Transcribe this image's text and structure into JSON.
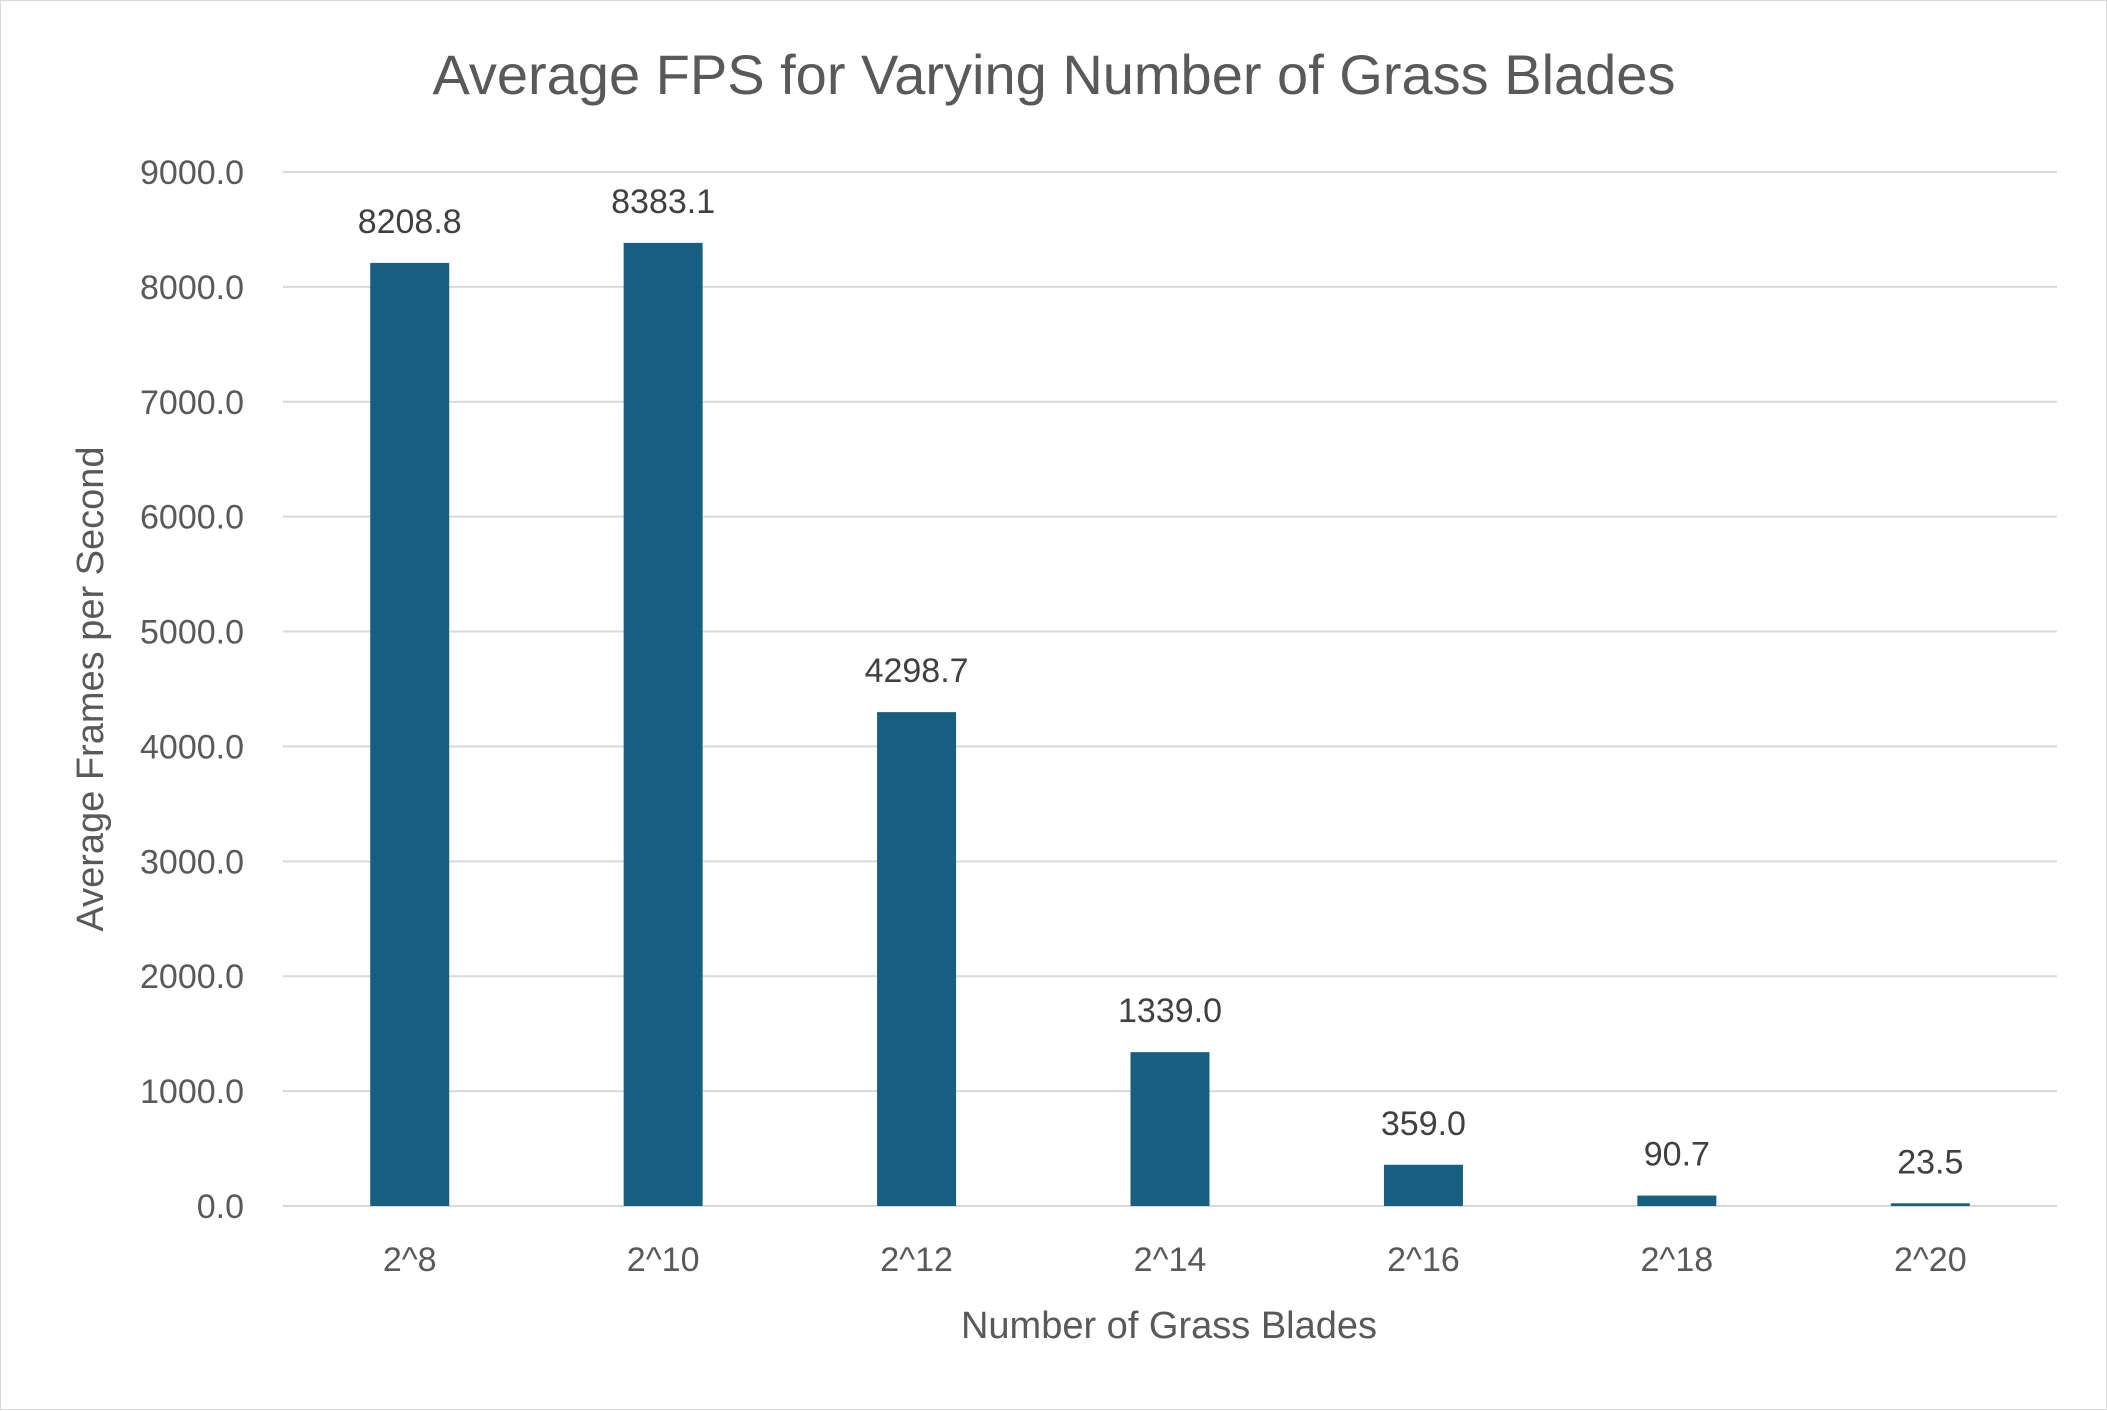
{
  "chart_data": {
    "type": "bar",
    "title": "Average FPS for Varying Number of Grass Blades",
    "xlabel": "Number of Grass Blades",
    "ylabel": "Average Frames per Second",
    "categories": [
      "2^8",
      "2^10",
      "2^12",
      "2^14",
      "2^16",
      "2^18",
      "2^20"
    ],
    "series": [
      {
        "values": [
          8208.8,
          8383.1,
          4298.7,
          1339.0,
          359.0,
          90.7,
          23.5
        ],
        "value_labels": [
          "8208.8",
          "8383.1",
          "4298.7",
          "1339.0",
          "359.0",
          "90.7",
          "23.5"
        ],
        "color": "#175f80"
      }
    ],
    "ylim": [
      0,
      9000
    ],
    "yticks": [
      0,
      1000,
      2000,
      3000,
      4000,
      5000,
      6000,
      7000,
      8000,
      9000
    ],
    "ytick_labels": [
      "0.0",
      "1000.0",
      "2000.0",
      "3000.0",
      "4000.0",
      "5000.0",
      "6000.0",
      "7000.0",
      "8000.0",
      "9000.0"
    ],
    "grid": true,
    "legend": "none",
    "data_labels": true
  }
}
